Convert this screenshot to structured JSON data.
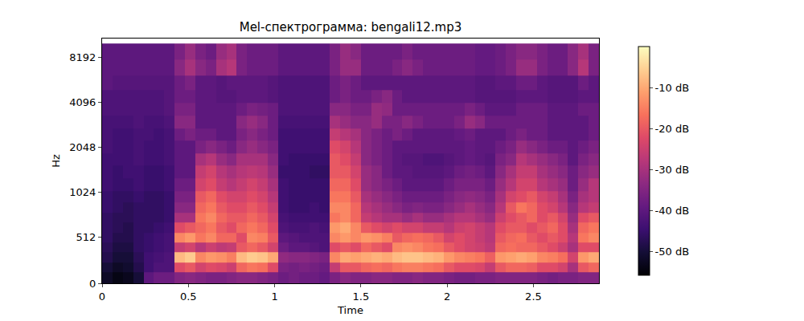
{
  "chart_data": {
    "type": "heatmap",
    "title": "Mel-спектрограмма: bengali12.mp3",
    "x_label": "Time",
    "y_label": "Hz",
    "color": "magma",
    "x": [
      0.03,
      0.09,
      0.15,
      0.21,
      0.27,
      0.33,
      0.39,
      0.45,
      0.51,
      0.57,
      0.63,
      0.69,
      0.75,
      0.81,
      0.87,
      0.93,
      0.99,
      1.05,
      1.11,
      1.17,
      1.23,
      1.29,
      1.35,
      1.41,
      1.47,
      1.53,
      1.59,
      1.65,
      1.71,
      1.77,
      1.83,
      1.89,
      1.95,
      2.01,
      2.07,
      2.13,
      2.19,
      2.25,
      2.31,
      2.37,
      2.43,
      2.49,
      2.55,
      2.61,
      2.67,
      2.73,
      2.79,
      2.85
    ],
    "y": [
      60,
      180,
      290,
      400,
      510,
      620,
      730,
      850,
      960,
      1150,
      1400,
      1700,
      2050,
      2500,
      3000,
      3700,
      4500,
      5500,
      7000,
      9000
    ],
    "z": [
      [
        -52,
        -54,
        -53,
        -50,
        -40,
        -38,
        -38,
        -35,
        -34,
        -35,
        -36,
        -36,
        -35,
        -34,
        -34,
        -35,
        -36,
        -38,
        -37,
        -38,
        -38,
        -39,
        -36,
        -34,
        -35,
        -35,
        -34,
        -34,
        -35,
        -35,
        -34,
        -35,
        -35,
        -36,
        -37,
        -37,
        -36,
        -36,
        -35,
        -35,
        -35,
        -35,
        -36,
        -37,
        -36,
        -36,
        -35,
        -35
      ],
      [
        -50,
        -52,
        -51,
        -48,
        -44,
        -42,
        -42,
        -22,
        -20,
        -24,
        -22,
        -23,
        -25,
        -18,
        -16,
        -17,
        -22,
        -36,
        -37,
        -36,
        -37,
        -38,
        -26,
        -20,
        -20,
        -18,
        -17,
        -18,
        -16,
        -15,
        -15,
        -16,
        -17,
        -20,
        -22,
        -22,
        -23,
        -26,
        -20,
        -18,
        -18,
        -19,
        -22,
        -22,
        -24,
        -30,
        -20,
        -18
      ],
      [
        -48,
        -50,
        -50,
        -47,
        -44,
        -43,
        -42,
        -8,
        -6,
        -14,
        -12,
        -13,
        -15,
        -8,
        -6,
        -7,
        -10,
        -33,
        -34,
        -34,
        -35,
        -36,
        -14,
        -10,
        -11,
        -10,
        -9,
        -10,
        -8,
        -7,
        -7,
        -8,
        -9,
        -12,
        -14,
        -15,
        -16,
        -19,
        -12,
        -11,
        -10,
        -11,
        -14,
        -15,
        -17,
        -24,
        -12,
        -10
      ],
      [
        -47,
        -49,
        -49,
        -46,
        -45,
        -44,
        -43,
        -26,
        -24,
        -28,
        -25,
        -27,
        -26,
        -20,
        -18,
        -20,
        -24,
        -38,
        -40,
        -40,
        -41,
        -42,
        -22,
        -20,
        -22,
        -18,
        -20,
        -22,
        -14,
        -13,
        -14,
        -16,
        -17,
        -20,
        -22,
        -24,
        -25,
        -27,
        -18,
        -17,
        -18,
        -18,
        -20,
        -22,
        -25,
        -30,
        -22,
        -22
      ],
      [
        -46,
        -48,
        -48,
        -46,
        -45,
        -44,
        -43,
        -14,
        -12,
        -16,
        -14,
        -18,
        -18,
        -22,
        -14,
        -15,
        -20,
        -40,
        -41,
        -42,
        -42,
        -42,
        -14,
        -12,
        -14,
        -12,
        -13,
        -15,
        -20,
        -18,
        -17,
        -18,
        -20,
        -24,
        -22,
        -24,
        -26,
        -28,
        -20,
        -18,
        -17,
        -20,
        -22,
        -20,
        -22,
        -28,
        -16,
        -14
      ],
      [
        -46,
        -47,
        -48,
        -46,
        -46,
        -45,
        -44,
        -22,
        -20,
        -18,
        -16,
        -20,
        -22,
        -18,
        -16,
        -18,
        -22,
        -42,
        -43,
        -43,
        -42,
        -43,
        -12,
        -10,
        -14,
        -20,
        -22,
        -24,
        -22,
        -24,
        -24,
        -26,
        -26,
        -28,
        -25,
        -24,
        -26,
        -28,
        -22,
        -20,
        -20,
        -22,
        -20,
        -18,
        -22,
        -30,
        -18,
        -16
      ],
      [
        -46,
        -47,
        -47,
        -46,
        -46,
        -46,
        -45,
        -30,
        -30,
        -16,
        -14,
        -18,
        -20,
        -20,
        -18,
        -20,
        -24,
        -43,
        -44,
        -44,
        -44,
        -44,
        -16,
        -14,
        -18,
        -26,
        -28,
        -30,
        -30,
        -32,
        -30,
        -32,
        -32,
        -30,
        -28,
        -28,
        -30,
        -32,
        -25,
        -22,
        -20,
        -18,
        -22,
        -20,
        -24,
        -32,
        -22,
        -20
      ],
      [
        -45,
        -46,
        -47,
        -46,
        -46,
        -46,
        -45,
        -34,
        -34,
        -18,
        -16,
        -20,
        -22,
        -22,
        -20,
        -22,
        -26,
        -44,
        -45,
        -45,
        -44,
        -45,
        -14,
        -14,
        -18,
        -28,
        -30,
        -32,
        -34,
        -36,
        -35,
        -36,
        -36,
        -34,
        -32,
        -30,
        -32,
        -34,
        -28,
        -20,
        -16,
        -18,
        -22,
        -24,
        -28,
        -34,
        -28,
        -26
      ],
      [
        -45,
        -46,
        -46,
        -45,
        -46,
        -46,
        -45,
        -36,
        -36,
        -20,
        -18,
        -22,
        -24,
        -24,
        -22,
        -24,
        -28,
        -44,
        -45,
        -45,
        -45,
        -45,
        -16,
        -16,
        -20,
        -30,
        -32,
        -34,
        -36,
        -38,
        -38,
        -38,
        -38,
        -36,
        -34,
        -33,
        -34,
        -36,
        -30,
        -24,
        -22,
        -20,
        -24,
        -26,
        -30,
        -36,
        -30,
        -28
      ],
      [
        -44,
        -45,
        -45,
        -44,
        -45,
        -45,
        -44,
        -38,
        -38,
        -24,
        -22,
        -26,
        -28,
        -26,
        -24,
        -26,
        -30,
        -44,
        -45,
        -45,
        -45,
        -45,
        -18,
        -18,
        -22,
        -32,
        -34,
        -36,
        -38,
        -40,
        -40,
        -40,
        -40,
        -38,
        -36,
        -36,
        -36,
        -38,
        -32,
        -28,
        -24,
        -24,
        -28,
        -30,
        -32,
        -38,
        -32,
        -28
      ],
      [
        -44,
        -45,
        -44,
        -44,
        -45,
        -45,
        -44,
        -40,
        -40,
        -26,
        -24,
        -28,
        -30,
        -28,
        -27,
        -28,
        -32,
        -45,
        -45,
        -45,
        -46,
        -46,
        -20,
        -20,
        -24,
        -32,
        -34,
        -38,
        -40,
        -40,
        -41,
        -41,
        -41,
        -40,
        -38,
        -37,
        -38,
        -40,
        -34,
        -30,
        -26,
        -26,
        -30,
        -32,
        -34,
        -38,
        -34,
        -32
      ],
      [
        -44,
        -44,
        -44,
        -43,
        -44,
        -44,
        -43,
        -40,
        -40,
        -30,
        -28,
        -32,
        -34,
        -30,
        -30,
        -30,
        -34,
        -44,
        -45,
        -45,
        -45,
        -45,
        -20,
        -22,
        -26,
        -34,
        -36,
        -38,
        -40,
        -41,
        -41,
        -42,
        -42,
        -41,
        -40,
        -39,
        -40,
        -41,
        -36,
        -34,
        -28,
        -30,
        -32,
        -34,
        -36,
        -40,
        -36,
        -34
      ],
      [
        -43,
        -44,
        -44,
        -43,
        -44,
        -44,
        -43,
        -40,
        -40,
        -36,
        -34,
        -36,
        -38,
        -34,
        -32,
        -34,
        -36,
        -44,
        -44,
        -44,
        -44,
        -44,
        -22,
        -24,
        -28,
        -34,
        -36,
        -38,
        -40,
        -40,
        -40,
        -40,
        -40,
        -40,
        -40,
        -39,
        -40,
        -40,
        -38,
        -36,
        -32,
        -34,
        -36,
        -38,
        -38,
        -40,
        -38,
        -36
      ],
      [
        -43,
        -44,
        -44,
        -43,
        -43,
        -44,
        -43,
        -38,
        -36,
        -38,
        -38,
        -40,
        -40,
        -36,
        -34,
        -36,
        -38,
        -44,
        -44,
        -44,
        -44,
        -44,
        -26,
        -28,
        -30,
        -34,
        -36,
        -38,
        -36,
        -38,
        -40,
        -40,
        -40,
        -40,
        -39,
        -38,
        -40,
        -40,
        -40,
        -38,
        -36,
        -38,
        -38,
        -40,
        -40,
        -40,
        -40,
        -38
      ],
      [
        -43,
        -43,
        -43,
        -42,
        -43,
        -43,
        -42,
        -34,
        -34,
        -40,
        -40,
        -40,
        -40,
        -34,
        -32,
        -34,
        -38,
        -43,
        -43,
        -43,
        -43,
        -43,
        -30,
        -32,
        -34,
        -34,
        -32,
        -36,
        -36,
        -34,
        -36,
        -38,
        -38,
        -38,
        -36,
        -32,
        -34,
        -38,
        -38,
        -38,
        -38,
        -38,
        -38,
        -40,
        -40,
        -40,
        -40,
        -38
      ],
      [
        -42,
        -42,
        -42,
        -42,
        -42,
        -42,
        -41,
        -36,
        -36,
        -40,
        -40,
        -40,
        -40,
        -38,
        -36,
        -37,
        -38,
        -42,
        -42,
        -42,
        -42,
        -42,
        -34,
        -34,
        -36,
        -36,
        -32,
        -33,
        -38,
        -38,
        -38,
        -38,
        -38,
        -38,
        -38,
        -36,
        -38,
        -40,
        -40,
        -40,
        -38,
        -38,
        -38,
        -40,
        -40,
        -40,
        -38,
        -38
      ],
      [
        -42,
        -42,
        -42,
        -42,
        -42,
        -42,
        -41,
        -38,
        -38,
        -40,
        -40,
        -41,
        -41,
        -40,
        -40,
        -40,
        -41,
        -42,
        -42,
        -42,
        -42,
        -42,
        -38,
        -36,
        -38,
        -38,
        -36,
        -34,
        -38,
        -40,
        -40,
        -40,
        -40,
        -40,
        -40,
        -40,
        -41,
        -41,
        -41,
        -41,
        -40,
        -40,
        -40,
        -41,
        -41,
        -41,
        -40,
        -40
      ],
      [
        -40,
        -41,
        -41,
        -41,
        -41,
        -41,
        -41,
        -38,
        -36,
        -40,
        -40,
        -41,
        -40,
        -40,
        -40,
        -40,
        -41,
        -42,
        -42,
        -42,
        -42,
        -42,
        -38,
        -36,
        -38,
        -40,
        -40,
        -40,
        -40,
        -40,
        -40,
        -40,
        -40,
        -40,
        -40,
        -40,
        -41,
        -41,
        -40,
        -40,
        -38,
        -38,
        -40,
        -41,
        -41,
        -41,
        -38,
        -40
      ],
      [
        -40,
        -40,
        -40,
        -40,
        -40,
        -40,
        -40,
        -34,
        -30,
        -34,
        -36,
        -30,
        -28,
        -36,
        -38,
        -38,
        -38,
        -40,
        -40,
        -40,
        -40,
        -40,
        -36,
        -32,
        -32,
        -38,
        -38,
        -38,
        -36,
        -34,
        -36,
        -38,
        -38,
        -38,
        -38,
        -38,
        -39,
        -39,
        -38,
        -36,
        -32,
        -32,
        -36,
        -38,
        -38,
        -34,
        -28,
        -36
      ],
      [
        -40,
        -40,
        -40,
        -40,
        -40,
        -40,
        -40,
        -36,
        -32,
        -36,
        -38,
        -32,
        -30,
        -36,
        -38,
        -38,
        -38,
        -40,
        -40,
        -40,
        -40,
        -40,
        -36,
        -32,
        -34,
        -38,
        -38,
        -38,
        -38,
        -36,
        -38,
        -38,
        -38,
        -38,
        -38,
        -38,
        -39,
        -39,
        -38,
        -36,
        -34,
        -34,
        -36,
        -38,
        -38,
        -34,
        -30,
        -36
      ]
    ],
    "xlim": [
      0,
      2.88
    ],
    "ylim": [
      0,
      11025
    ],
    "xticks": [
      0,
      0.5,
      1,
      1.5,
      2,
      2.5
    ],
    "yticks": [
      0,
      512,
      1024,
      2048,
      4096,
      8192
    ],
    "colorbar": {
      "range": [
        -55.8,
        0
      ],
      "ticks": [
        {
          "value": -10,
          "label": "-10 dB"
        },
        {
          "value": -20,
          "label": "-20 dB"
        },
        {
          "value": -30,
          "label": "-30 dB"
        },
        {
          "value": -40,
          "label": "-40 dB"
        },
        {
          "value": -50,
          "label": "-50 dB"
        }
      ]
    }
  }
}
